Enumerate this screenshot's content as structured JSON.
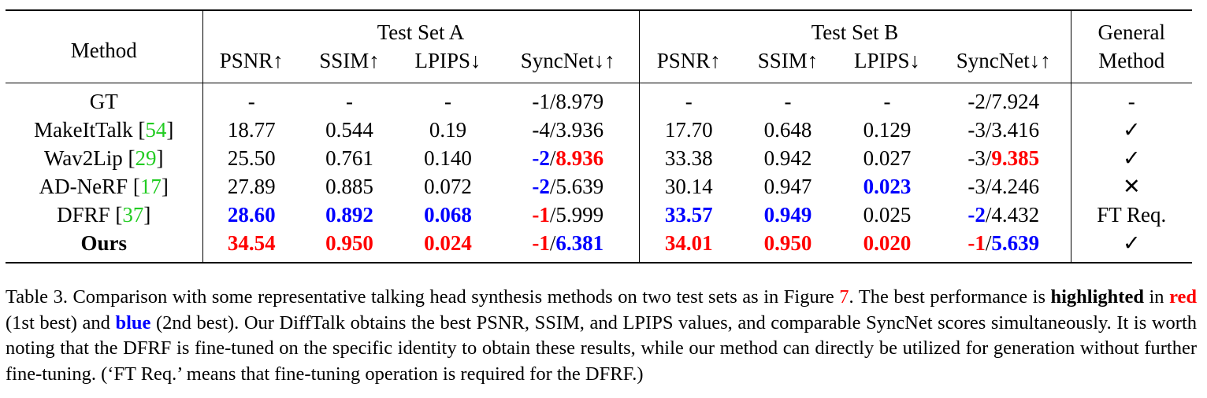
{
  "table": {
    "method_header": "Method",
    "group_a": "Test Set A",
    "group_b": "Test Set B",
    "general_header_1": "General",
    "general_header_2": "Method",
    "metrics": [
      "PSNR↑",
      "SSIM↑",
      "LPIPS↓",
      "SyncNet↓↑"
    ],
    "rows": [
      {
        "method": "GT",
        "cite": "",
        "a": [
          "-",
          "-",
          "-",
          {
            "l": "-1",
            "s": "/",
            "r": "8.979"
          }
        ],
        "b": [
          "-",
          "-",
          "-",
          {
            "l": "-2",
            "s": "/",
            "r": "7.924"
          }
        ],
        "general": "-"
      },
      {
        "method": "MakeItTalk",
        "cite": "54",
        "a": [
          "18.77",
          "0.544",
          "0.19",
          {
            "l": "-4",
            "s": "/",
            "r": "3.936"
          }
        ],
        "b": [
          "17.70",
          "0.648",
          "0.129",
          {
            "l": "-3",
            "s": "/",
            "r": "3.416"
          }
        ],
        "general": "✓"
      },
      {
        "method": "Wav2Lip",
        "cite": "29",
        "a": [
          "25.50",
          "0.761",
          "0.140",
          {
            "l": "-2",
            "s": "/",
            "r": "8.936"
          }
        ],
        "b": [
          "33.38",
          "0.942",
          "0.027",
          {
            "l": "-3",
            "s": "/",
            "r": "9.385"
          }
        ],
        "general": "✓"
      },
      {
        "method": "AD-NeRF",
        "cite": "17",
        "a": [
          "27.89",
          "0.885",
          "0.072",
          {
            "l": "-2",
            "s": "/",
            "r": "5.639"
          }
        ],
        "b": [
          "30.14",
          "0.947",
          "0.023",
          {
            "l": "-3",
            "s": "/",
            "r": "4.246"
          }
        ],
        "general": "✕"
      },
      {
        "method": "DFRF",
        "cite": "37",
        "a": [
          "28.60",
          "0.892",
          "0.068",
          {
            "l": "-1",
            "s": "/",
            "r": "5.999"
          }
        ],
        "b": [
          "33.57",
          "0.949",
          "0.025",
          {
            "l": "-2",
            "s": "/",
            "r": "4.432"
          }
        ],
        "general": "FT Req."
      },
      {
        "method": "Ours",
        "cite": "",
        "a": [
          "34.54",
          "0.950",
          "0.024",
          {
            "l": "-1",
            "s": "/",
            "r": "6.381"
          }
        ],
        "b": [
          "34.01",
          "0.950",
          "0.020",
          {
            "l": "-1",
            "s": "/",
            "r": "5.639"
          }
        ],
        "general": "✓"
      }
    ]
  },
  "colors": {
    "best": "#ff0000",
    "second": "#0000ff",
    "citation": "#22cc22"
  },
  "caption": {
    "p1": "Table 3. Comparison with some representative talking head synthesis methods on two test sets as in Figure ",
    "fig_ref": "7",
    "p2": ". The best performance is ",
    "highlighted": "highlighted",
    "p3": " in ",
    "red": "red",
    "p4": " (1st best) and ",
    "blue": "blue",
    "p5": " (2nd best). Our DiffTalk obtains the best PSNR, SSIM, and LPIPS values, and comparable SyncNet scores simultaneously. It is worth noting that the DFRF is fine-tuned on the specific identity to obtain these results, while our method can directly be utilized for generation without further fine-tuning. (‘FT Req.’ means that fine-tuning operation is required for the DFRF.)"
  }
}
